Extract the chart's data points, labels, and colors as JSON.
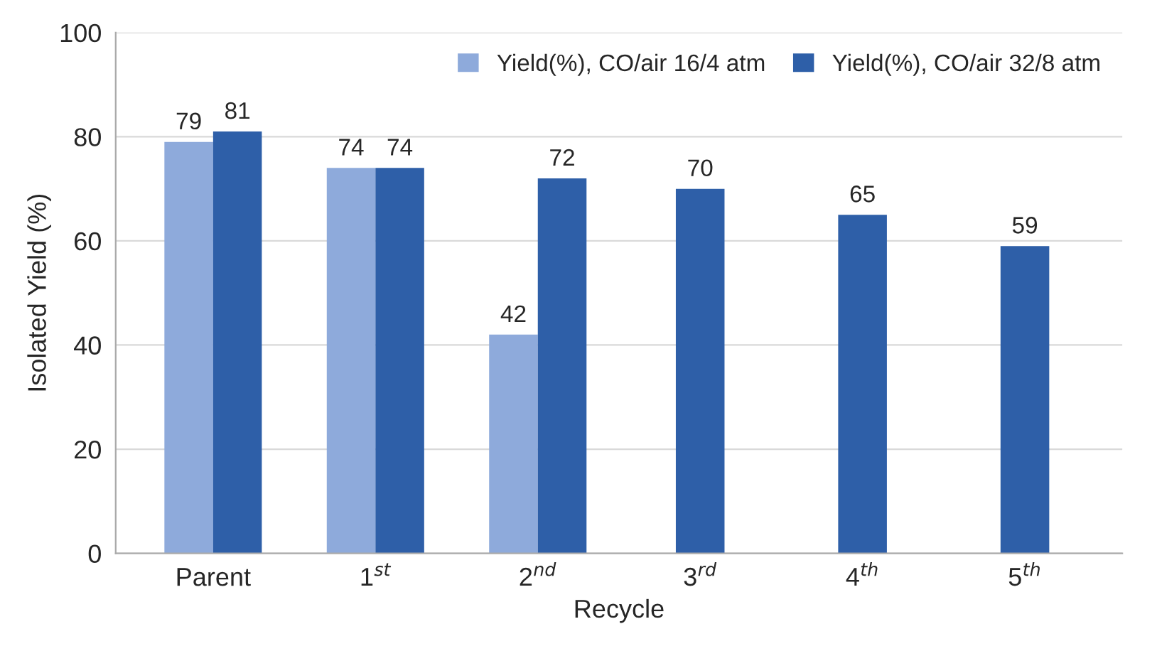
{
  "chart_data": {
    "type": "bar",
    "xlabel": "Recycle",
    "ylabel": "Isolated Yield (%)",
    "categories": [
      "Parent",
      "1$^{st}$",
      "2$^{nd}$",
      "3$^{rd}$",
      "4$^{th}$",
      "5$^{th}$"
    ],
    "series": [
      {
        "name": "Yield(%), CO/air 16/4 atm",
        "color": "#8eaadb",
        "values": [
          79,
          74,
          42,
          null,
          null,
          null
        ]
      },
      {
        "name": "Yield(%), CO/air 32/8 atm",
        "color": "#2e5fa8",
        "values": [
          81,
          74,
          72,
          70,
          65,
          59
        ]
      }
    ],
    "ylim": [
      0,
      100
    ],
    "yticks": [
      0,
      20,
      40,
      60,
      80,
      100
    ],
    "grid": "y",
    "legend": "top right",
    "data_labels": true
  }
}
